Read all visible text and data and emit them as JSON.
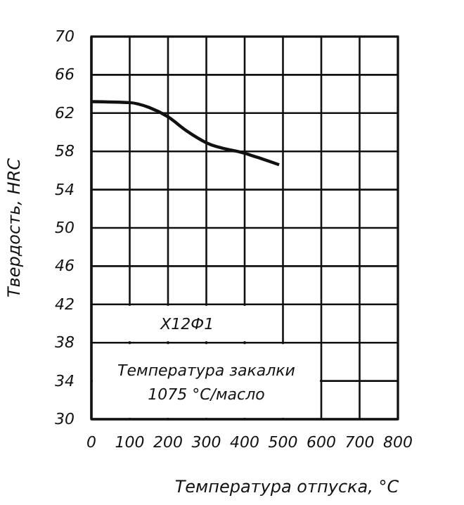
{
  "chart_data": {
    "type": "line",
    "xlabel": "Температура отпуска, °C",
    "ylabel": "Твердость, HRC",
    "series": [
      {
        "color": "#111111",
        "x": [
          0,
          100,
          150,
          200,
          250,
          300,
          400,
          490
        ],
        "values": [
          63.2,
          63.1,
          62.6,
          61.6,
          60.1,
          58.9,
          57.8,
          56.6
        ]
      }
    ],
    "xlim": [
      0,
      800
    ],
    "xticks": [
      0,
      100,
      200,
      300,
      400,
      500,
      600,
      700,
      800
    ],
    "ylim": [
      30,
      70
    ],
    "yticks": [
      30,
      34,
      38,
      42,
      46,
      50,
      54,
      58,
      62,
      66,
      70
    ],
    "grid": true,
    "marker": "none",
    "line_style": "solid",
    "annotations": [
      "Х12Ф1",
      "Температура закалки\n1075 °C/масло"
    ]
  }
}
